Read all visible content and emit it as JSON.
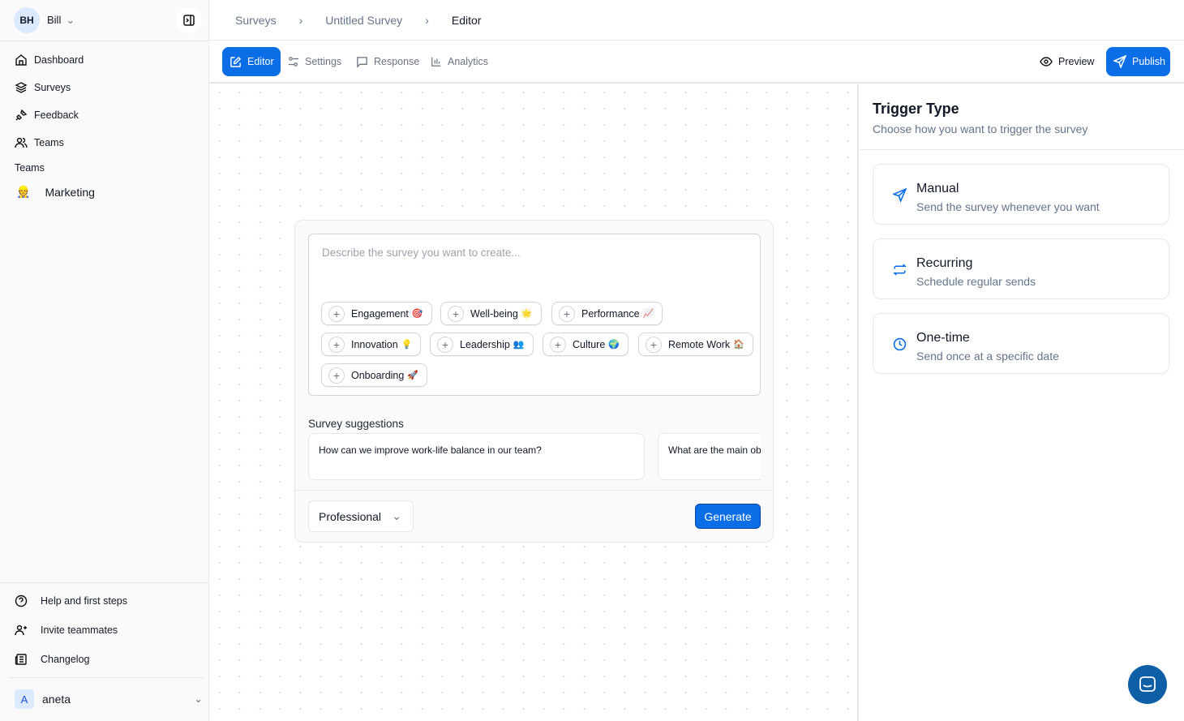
{
  "user": {
    "initials": "BH",
    "name": "Bill"
  },
  "sidebar": {
    "items": [
      {
        "label": "Dashboard"
      },
      {
        "label": "Surveys"
      },
      {
        "label": "Feedback"
      },
      {
        "label": "Teams"
      }
    ],
    "teams_heading": "Teams",
    "teams": [
      {
        "label": "Marketing",
        "emoji": "👷"
      }
    ],
    "bottom": [
      {
        "label": "Help and first steps"
      },
      {
        "label": "Invite teammates"
      },
      {
        "label": "Changelog"
      }
    ],
    "account": {
      "initial": "A",
      "name": "aneta"
    }
  },
  "breadcrumb": [
    "Surveys",
    "Untitled Survey",
    "Editor"
  ],
  "tabs": [
    {
      "label": "Editor",
      "active": true
    },
    {
      "label": "Settings"
    },
    {
      "label": "Response"
    },
    {
      "label": "Analytics"
    }
  ],
  "actions": {
    "preview": "Preview",
    "publish": "Publish"
  },
  "accent": "#0b6ee6",
  "editor": {
    "placeholder": "Describe the survey you want to create...",
    "chips": [
      {
        "label": "Engagement",
        "emoji": "🎯"
      },
      {
        "label": "Well-being",
        "emoji": "🌟"
      },
      {
        "label": "Performance",
        "emoji": "📈"
      },
      {
        "label": "Innovation",
        "emoji": "💡"
      },
      {
        "label": "Leadership",
        "emoji": "👥"
      },
      {
        "label": "Culture",
        "emoji": "🌍"
      },
      {
        "label": "Remote Work",
        "emoji": "🏠"
      },
      {
        "label": "Onboarding",
        "emoji": "🚀"
      }
    ],
    "suggestions_label": "Survey suggestions",
    "suggestions": [
      "How can we improve work-life balance in our team?",
      "What are the main ob"
    ],
    "tone": "Professional",
    "generate": "Generate"
  },
  "trigger": {
    "title": "Trigger Type",
    "subtitle": "Choose how you want to trigger the survey",
    "options": [
      {
        "title": "Manual",
        "desc": "Send the survey whenever you want",
        "icon": "send-icon"
      },
      {
        "title": "Recurring",
        "desc": "Schedule regular sends",
        "icon": "repeat-icon"
      },
      {
        "title": "One-time",
        "desc": "Send once at a specific date",
        "icon": "clock-icon"
      }
    ]
  }
}
